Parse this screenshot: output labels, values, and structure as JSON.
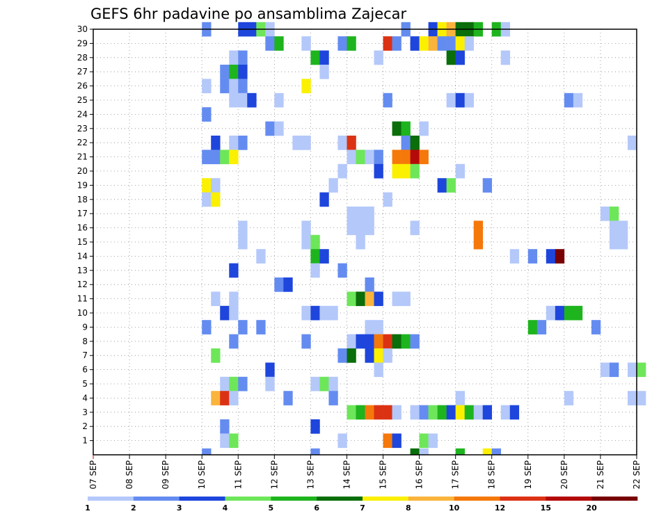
{
  "chart_data": {
    "type": "heatmap",
    "title": "GEFS 6hr padavine po ansamblima Zajecar",
    "x_tick_labels": [
      "07 SEP",
      "08 SEP",
      "09 SEP",
      "10 SEP",
      "11 SEP",
      "12 SEP",
      "13 SEP",
      "14 SEP",
      "15 SEP",
      "16 SEP",
      "17 SEP",
      "18 SEP",
      "19 SEP",
      "20 SEP",
      "21 SEP",
      "22 SEP"
    ],
    "y_tick_labels": [
      "1",
      "2",
      "3",
      "4",
      "5",
      "6",
      "7",
      "8",
      "9",
      "10",
      "11",
      "12",
      "13",
      "14",
      "15",
      "16",
      "17",
      "18",
      "19",
      "20",
      "21",
      "22",
      "23",
      "24",
      "25",
      "26",
      "27",
      "28",
      "29",
      "30"
    ],
    "y_range": [
      0,
      30
    ],
    "time_step_hours": 6,
    "grid": true,
    "colorbar": {
      "ticks": [
        "1",
        "2",
        "3",
        "4",
        "5",
        "6",
        "7",
        "8",
        "10",
        "12",
        "15",
        "20"
      ],
      "colors": [
        "#b4c8fa",
        "#648cf0",
        "#1e46dc",
        "#6ee65a",
        "#1eb41e",
        "#0a6e0a",
        "#faf000",
        "#fab43c",
        "#f5780a",
        "#dc3214",
        "#b40a0a",
        "#780000"
      ]
    },
    "cells": [
      [
        12,
        30,
        2
      ],
      [
        16,
        30,
        3
      ],
      [
        17,
        30,
        3
      ],
      [
        18,
        30,
        4
      ],
      [
        19,
        30,
        1
      ],
      [
        34,
        30,
        2
      ],
      [
        37,
        30,
        3
      ],
      [
        38,
        30,
        7
      ],
      [
        39,
        30,
        8
      ],
      [
        40,
        30,
        6
      ],
      [
        41,
        30,
        6
      ],
      [
        42,
        30,
        5
      ],
      [
        44,
        30,
        5
      ],
      [
        45,
        30,
        1
      ],
      [
        19,
        29,
        2
      ],
      [
        20,
        29,
        5
      ],
      [
        23,
        29,
        1
      ],
      [
        27,
        29,
        2
      ],
      [
        28,
        29,
        5
      ],
      [
        32,
        29,
        13
      ],
      [
        33,
        29,
        2
      ],
      [
        35,
        29,
        3
      ],
      [
        36,
        29,
        7
      ],
      [
        37,
        29,
        8
      ],
      [
        38,
        29,
        2
      ],
      [
        39,
        29,
        2
      ],
      [
        40,
        29,
        7
      ],
      [
        41,
        29,
        1
      ],
      [
        15,
        28,
        1
      ],
      [
        16,
        28,
        2
      ],
      [
        24,
        28,
        5
      ],
      [
        25,
        28,
        3
      ],
      [
        31,
        28,
        1
      ],
      [
        39,
        28,
        6
      ],
      [
        40,
        28,
        3
      ],
      [
        45,
        28,
        1
      ],
      [
        14,
        27,
        2
      ],
      [
        15,
        27,
        5
      ],
      [
        16,
        27,
        3
      ],
      [
        25,
        27,
        1
      ],
      [
        12,
        26,
        1
      ],
      [
        14,
        26,
        2
      ],
      [
        15,
        26,
        1
      ],
      [
        16,
        26,
        2
      ],
      [
        23,
        26,
        7
      ],
      [
        15,
        25,
        1
      ],
      [
        16,
        25,
        1
      ],
      [
        17,
        25,
        3
      ],
      [
        20,
        25,
        1
      ],
      [
        32,
        25,
        2
      ],
      [
        39,
        25,
        1
      ],
      [
        40,
        25,
        3
      ],
      [
        41,
        25,
        1
      ],
      [
        52,
        25,
        2
      ],
      [
        53,
        25,
        1
      ],
      [
        12,
        24,
        2
      ],
      [
        19,
        23,
        2
      ],
      [
        20,
        23,
        1
      ],
      [
        33,
        23,
        6
      ],
      [
        34,
        23,
        5
      ],
      [
        36,
        23,
        1
      ],
      [
        13,
        22,
        3
      ],
      [
        15,
        22,
        1
      ],
      [
        16,
        22,
        2
      ],
      [
        22,
        22,
        1
      ],
      [
        23,
        22,
        1
      ],
      [
        27,
        22,
        1
      ],
      [
        28,
        22,
        13
      ],
      [
        34,
        22,
        2
      ],
      [
        35,
        22,
        6
      ],
      [
        59,
        22,
        1
      ],
      [
        12,
        21,
        2
      ],
      [
        13,
        21,
        2
      ],
      [
        14,
        21,
        4
      ],
      [
        15,
        21,
        7
      ],
      [
        28,
        21,
        1
      ],
      [
        29,
        21,
        4
      ],
      [
        30,
        21,
        1
      ],
      [
        31,
        21,
        2
      ],
      [
        33,
        21,
        11
      ],
      [
        34,
        21,
        10
      ],
      [
        35,
        21,
        15
      ],
      [
        36,
        21,
        11
      ],
      [
        27,
        20,
        1
      ],
      [
        31,
        20,
        3
      ],
      [
        33,
        20,
        7
      ],
      [
        34,
        20,
        7
      ],
      [
        35,
        20,
        4
      ],
      [
        40,
        20,
        1
      ],
      [
        12,
        19,
        7
      ],
      [
        13,
        19,
        1
      ],
      [
        26,
        19,
        1
      ],
      [
        38,
        19,
        3
      ],
      [
        39,
        19,
        4
      ],
      [
        43,
        19,
        2
      ],
      [
        12,
        18,
        1
      ],
      [
        13,
        18,
        7
      ],
      [
        25,
        18,
        3
      ],
      [
        32,
        18,
        1
      ],
      [
        28,
        17,
        1
      ],
      [
        29,
        17,
        1
      ],
      [
        30,
        17,
        1
      ],
      [
        56,
        17,
        1
      ],
      [
        57,
        17,
        4
      ],
      [
        16,
        16,
        1
      ],
      [
        23,
        16,
        1
      ],
      [
        28,
        16,
        1
      ],
      [
        29,
        16,
        1
      ],
      [
        30,
        16,
        1
      ],
      [
        35,
        16,
        1
      ],
      [
        42,
        16,
        11
      ],
      [
        57,
        16,
        1
      ],
      [
        58,
        16,
        1
      ],
      [
        16,
        15,
        1
      ],
      [
        23,
        15,
        1
      ],
      [
        24,
        15,
        4
      ],
      [
        29,
        15,
        1
      ],
      [
        42,
        15,
        11
      ],
      [
        57,
        15,
        1
      ],
      [
        58,
        15,
        1
      ],
      [
        18,
        14,
        1
      ],
      [
        24,
        14,
        5
      ],
      [
        25,
        14,
        3
      ],
      [
        46,
        14,
        1
      ],
      [
        48,
        14,
        2
      ],
      [
        50,
        14,
        3
      ],
      [
        51,
        14,
        20
      ],
      [
        15,
        13,
        3
      ],
      [
        24,
        13,
        1
      ],
      [
        27,
        13,
        2
      ],
      [
        20,
        12,
        2
      ],
      [
        21,
        12,
        3
      ],
      [
        30,
        12,
        2
      ],
      [
        13,
        11,
        1
      ],
      [
        15,
        11,
        1
      ],
      [
        28,
        11,
        4
      ],
      [
        29,
        11,
        6
      ],
      [
        30,
        11,
        9
      ],
      [
        31,
        11,
        3
      ],
      [
        33,
        11,
        1
      ],
      [
        34,
        11,
        1
      ],
      [
        14,
        10,
        3
      ],
      [
        15,
        10,
        1
      ],
      [
        23,
        10,
        1
      ],
      [
        24,
        10,
        3
      ],
      [
        25,
        10,
        1
      ],
      [
        26,
        10,
        1
      ],
      [
        50,
        10,
        1
      ],
      [
        51,
        10,
        3
      ],
      [
        52,
        10,
        5
      ],
      [
        53,
        10,
        5
      ],
      [
        12,
        9,
        2
      ],
      [
        16,
        9,
        2
      ],
      [
        18,
        9,
        2
      ],
      [
        30,
        9,
        1
      ],
      [
        31,
        9,
        1
      ],
      [
        48,
        9,
        5
      ],
      [
        49,
        9,
        2
      ],
      [
        55,
        9,
        2
      ],
      [
        15,
        8,
        2
      ],
      [
        23,
        8,
        2
      ],
      [
        28,
        8,
        1
      ],
      [
        29,
        8,
        3
      ],
      [
        30,
        8,
        3
      ],
      [
        31,
        8,
        10
      ],
      [
        32,
        8,
        12
      ],
      [
        33,
        8,
        6
      ],
      [
        34,
        8,
        5
      ],
      [
        35,
        8,
        2
      ],
      [
        13,
        7,
        4
      ],
      [
        27,
        7,
        2
      ],
      [
        28,
        7,
        6
      ],
      [
        30,
        7,
        3
      ],
      [
        31,
        7,
        7
      ],
      [
        32,
        7,
        1
      ],
      [
        19,
        6,
        3
      ],
      [
        31,
        6,
        1
      ],
      [
        56,
        6,
        1
      ],
      [
        57,
        6,
        2
      ],
      [
        59,
        6,
        1
      ],
      [
        60,
        6,
        4
      ],
      [
        14,
        5,
        1
      ],
      [
        15,
        5,
        4
      ],
      [
        16,
        5,
        2
      ],
      [
        19,
        5,
        1
      ],
      [
        24,
        5,
        1
      ],
      [
        25,
        5,
        4
      ],
      [
        26,
        5,
        1
      ],
      [
        13,
        4,
        8
      ],
      [
        14,
        4,
        13
      ],
      [
        15,
        4,
        1
      ],
      [
        21,
        4,
        2
      ],
      [
        26,
        4,
        2
      ],
      [
        40,
        4,
        1
      ],
      [
        52,
        4,
        1
      ],
      [
        59,
        4,
        1
      ],
      [
        60,
        4,
        1
      ],
      [
        28,
        3,
        4
      ],
      [
        29,
        3,
        5
      ],
      [
        30,
        3,
        11
      ],
      [
        31,
        3,
        13
      ],
      [
        32,
        3,
        14
      ],
      [
        33,
        3,
        1
      ],
      [
        35,
        3,
        1
      ],
      [
        36,
        3,
        2
      ],
      [
        37,
        3,
        4
      ],
      [
        38,
        3,
        5
      ],
      [
        39,
        3,
        3
      ],
      [
        40,
        3,
        7
      ],
      [
        41,
        3,
        5
      ],
      [
        42,
        3,
        1
      ],
      [
        43,
        3,
        3
      ],
      [
        45,
        3,
        1
      ],
      [
        46,
        3,
        3
      ],
      [
        14,
        2,
        2
      ],
      [
        24,
        2,
        3
      ],
      [
        14,
        1,
        1
      ],
      [
        15,
        1,
        4
      ],
      [
        27,
        1,
        1
      ],
      [
        32,
        1,
        11
      ],
      [
        33,
        1,
        3
      ],
      [
        36,
        1,
        4
      ],
      [
        37,
        1,
        1
      ],
      [
        12,
        0,
        2
      ],
      [
        24,
        0,
        2
      ],
      [
        35,
        0,
        6
      ],
      [
        36,
        0,
        1
      ],
      [
        40,
        0,
        5
      ],
      [
        43,
        0,
        7
      ],
      [
        44,
        0,
        2
      ]
    ]
  }
}
